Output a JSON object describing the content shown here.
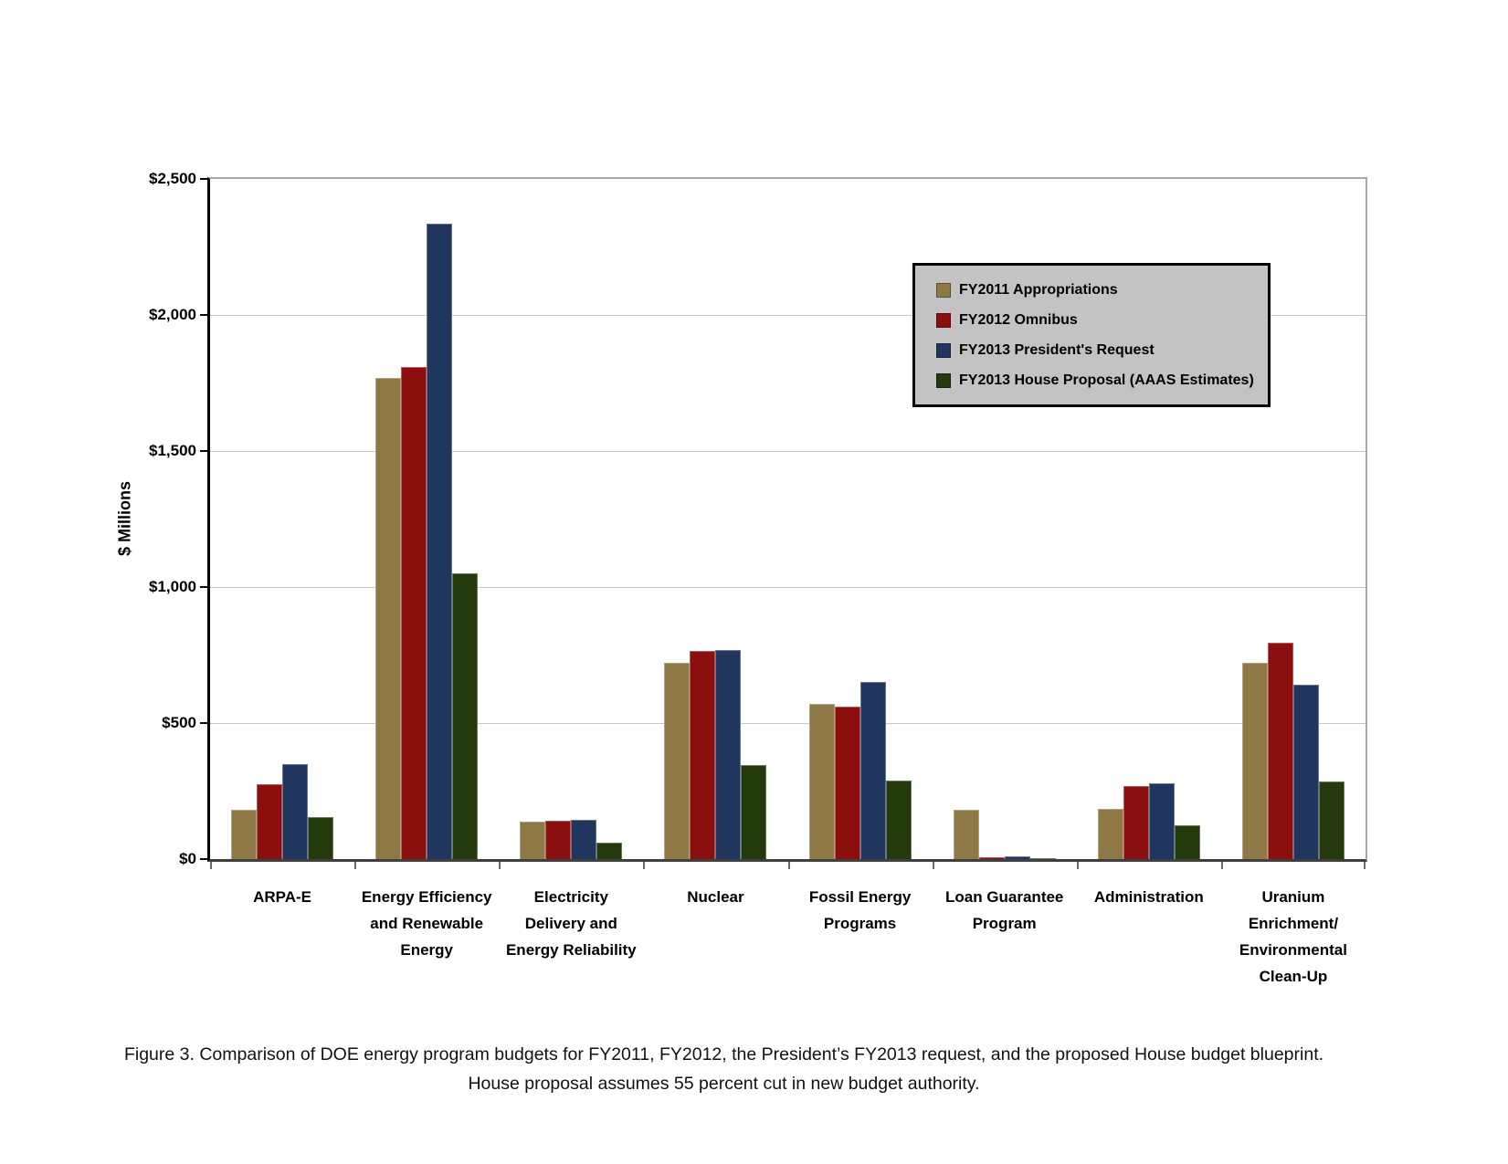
{
  "figure": {
    "caption_line1": "Figure 3. Comparison of DOE energy program budgets for FY2011, FY2012, the President’s FY2013 request, and the proposed House budget blueprint.",
    "caption_line2": "House proposal assumes 55 percent cut in new budget authority."
  },
  "chart_data": {
    "type": "bar",
    "title": "",
    "xlabel": "",
    "ylabel": "$ Millions",
    "ylim": [
      0,
      2500
    ],
    "ytick_interval": 500,
    "grid": true,
    "legend_position": "top-right-inside",
    "yticks": [
      {
        "label": "$2,500",
        "value": 2500
      },
      {
        "label": "$2,000",
        "value": 2000
      },
      {
        "label": "$1,500",
        "value": 1500
      },
      {
        "label": "$1,000",
        "value": 1000
      },
      {
        "label": "$500",
        "value": 500
      },
      {
        "label": "$0",
        "value": 0
      }
    ],
    "categories": [
      "ARPA-E",
      "Energy Efficiency and Renewable Energy",
      "Electricity Delivery and Energy Reliability",
      "Nuclear",
      "Fossil Energy Programs",
      "Loan Guarantee Program",
      "Administration",
      "Uranium Enrichment/ Environmental Clean-Up"
    ],
    "category_label_lines": [
      [
        "ARPA-E"
      ],
      [
        "Energy Efficiency",
        "and Renewable",
        "Energy"
      ],
      [
        "Electricity",
        "Delivery and",
        "Energy Reliability"
      ],
      [
        "Nuclear"
      ],
      [
        "Fossil Energy",
        "Programs"
      ],
      [
        "Loan Guarantee",
        "Program"
      ],
      [
        "Administration"
      ],
      [
        "Uranium",
        "Enrichment/",
        "Environmental",
        "Clean-Up"
      ]
    ],
    "series": [
      {
        "name": "FY2011 Appropriations",
        "color": "#8E7845",
        "values": [
          180,
          1770,
          138,
          720,
          570,
          180,
          185,
          720
        ]
      },
      {
        "name": "FY2012 Omnibus",
        "color": "#8C0F10",
        "values": [
          275,
          1810,
          141,
          765,
          560,
          8,
          270,
          795
        ]
      },
      {
        "name": "FY2013 President's Request",
        "color": "#21365F",
        "values": [
          350,
          2335,
          144,
          770,
          650,
          11,
          280,
          640
        ]
      },
      {
        "name": "FY2013 House Proposal (AAAS Estimates)",
        "color": "#243A0D",
        "values": [
          155,
          1050,
          62,
          345,
          290,
          2,
          125,
          285
        ]
      }
    ]
  },
  "colors": {
    "legend_background": "#C3C3C3",
    "gridline": "#C6C6C6",
    "axis": "#000000",
    "plot_border": "#A6A6A6"
  }
}
